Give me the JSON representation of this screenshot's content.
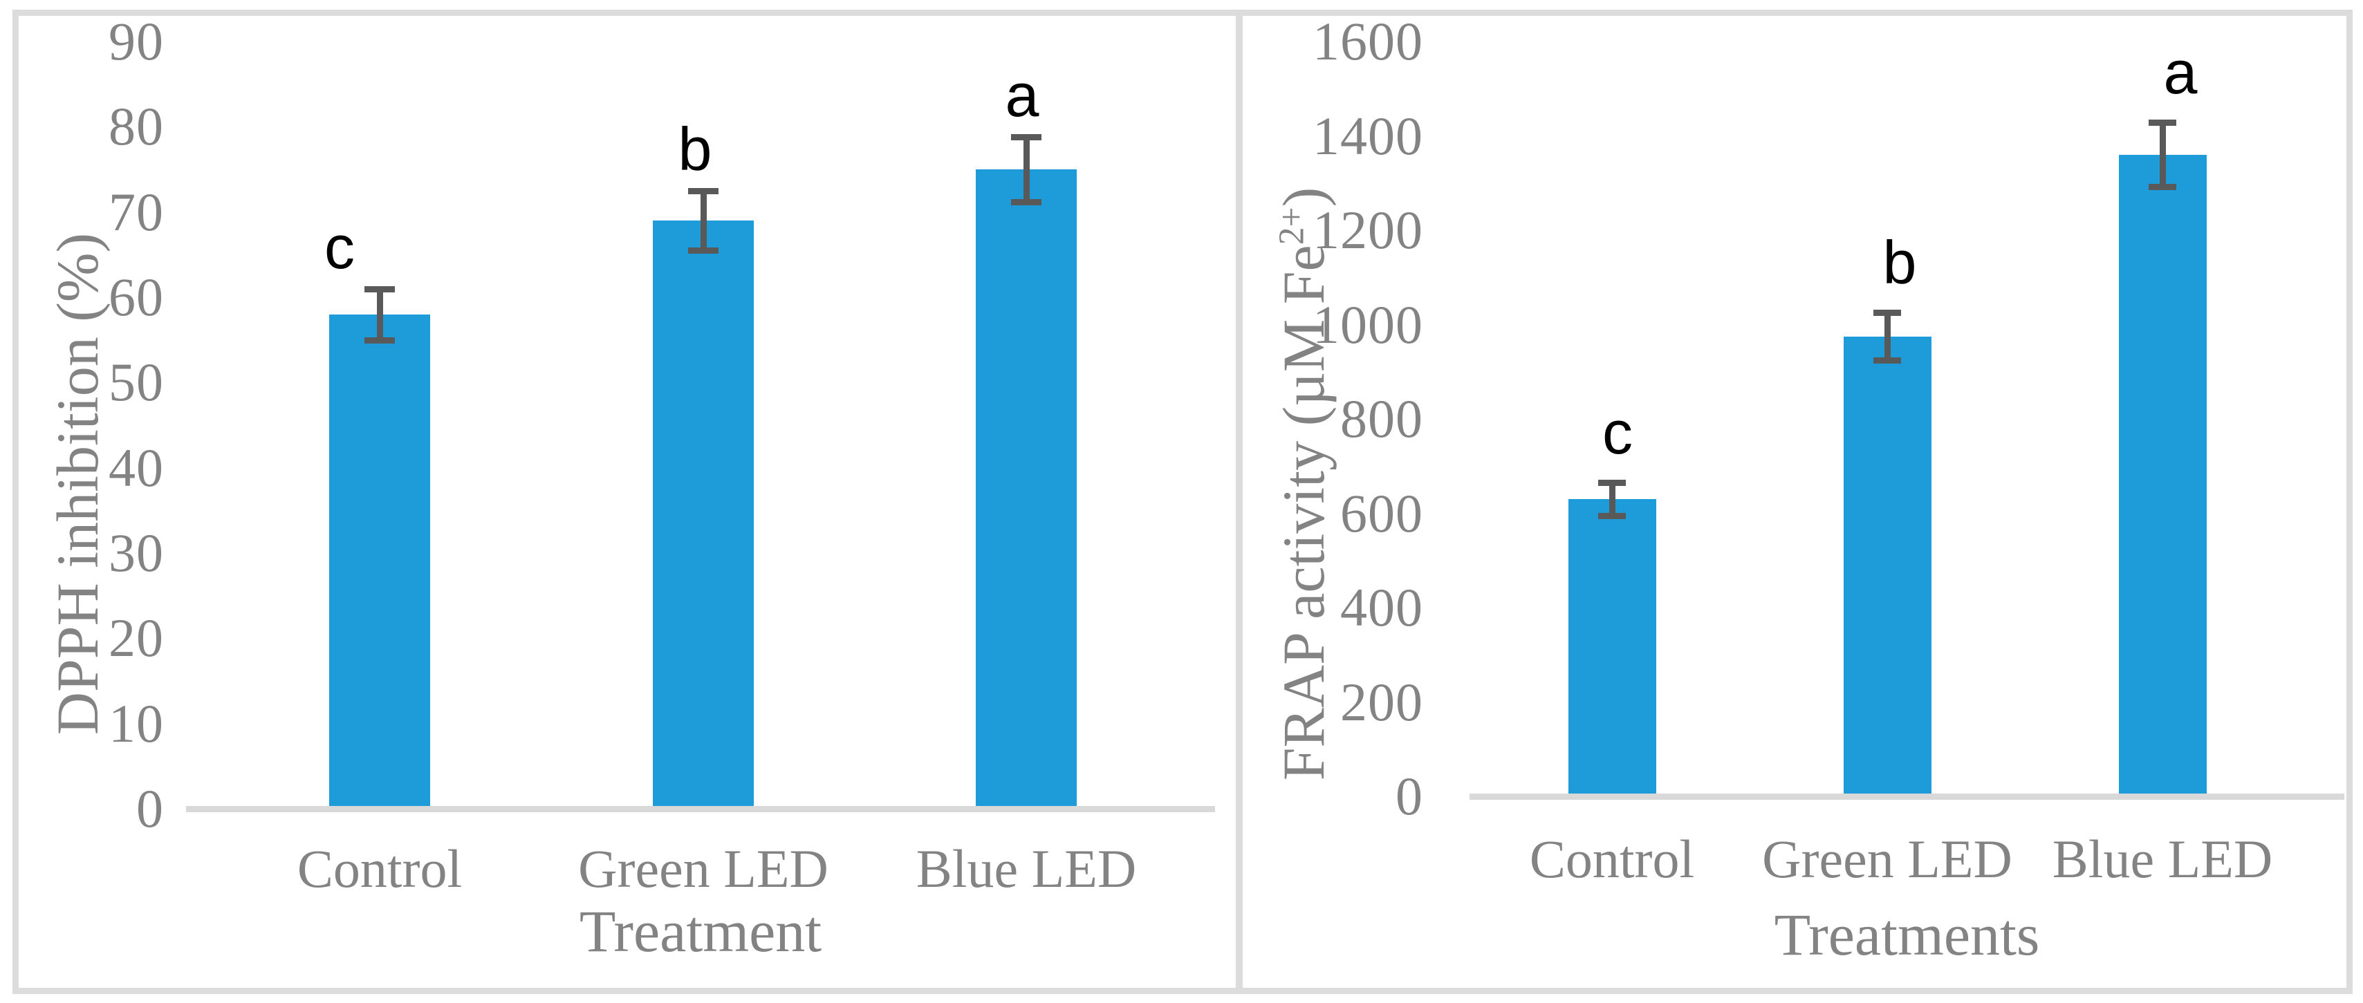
{
  "chart_data": [
    {
      "type": "bar",
      "panel": "left",
      "title": "",
      "categories": [
        "Control",
        "Green LED",
        "Blue LED"
      ],
      "values": [
        58,
        69,
        75
      ],
      "error_bars": [
        3,
        3.5,
        3.8
      ],
      "sig_letters": [
        "c",
        "b",
        "a"
      ],
      "xlabel": "Treatment",
      "ylabel": "DPPH inhibition (%)",
      "ylabel_parts": {
        "pre": "DPPH inhibition (%)",
        "sup": "",
        "post": ""
      },
      "ylim": [
        0,
        90
      ],
      "ytick_step": 10,
      "ytick_labels": [
        "0",
        "10",
        "20",
        "30",
        "40",
        "50",
        "60",
        "70",
        "80",
        "90"
      ],
      "grid": false,
      "legend": "none"
    },
    {
      "type": "bar",
      "panel": "right",
      "title": "",
      "categories": [
        "Control",
        "Green LED",
        "Blue LED"
      ],
      "values": [
        630,
        975,
        1360
      ],
      "error_bars": [
        35,
        50,
        68
      ],
      "sig_letters": [
        "c",
        "b",
        "a"
      ],
      "xlabel": "Treatments",
      "ylabel": "FRAP activity (µM Fe2+)",
      "ylabel_parts": {
        "pre": "FRAP activity (µM Fe",
        "sup": "2+",
        "post": ")"
      },
      "ylim": [
        0,
        1600
      ],
      "ytick_step": 200,
      "ytick_labels": [
        "0",
        "200",
        "400",
        "600",
        "800",
        "1000",
        "1200",
        "1400",
        "1600"
      ],
      "grid": false,
      "legend": "none"
    }
  ],
  "styles": {
    "bar_color": "#1e9cd9",
    "error_bar_color": "#595959",
    "axis_text_color": "#838383",
    "sig_letter_color": "#000000",
    "axis_line_color": "#d9d9d9",
    "frame_color": "#dcdcdc",
    "background": "#ffffff"
  }
}
